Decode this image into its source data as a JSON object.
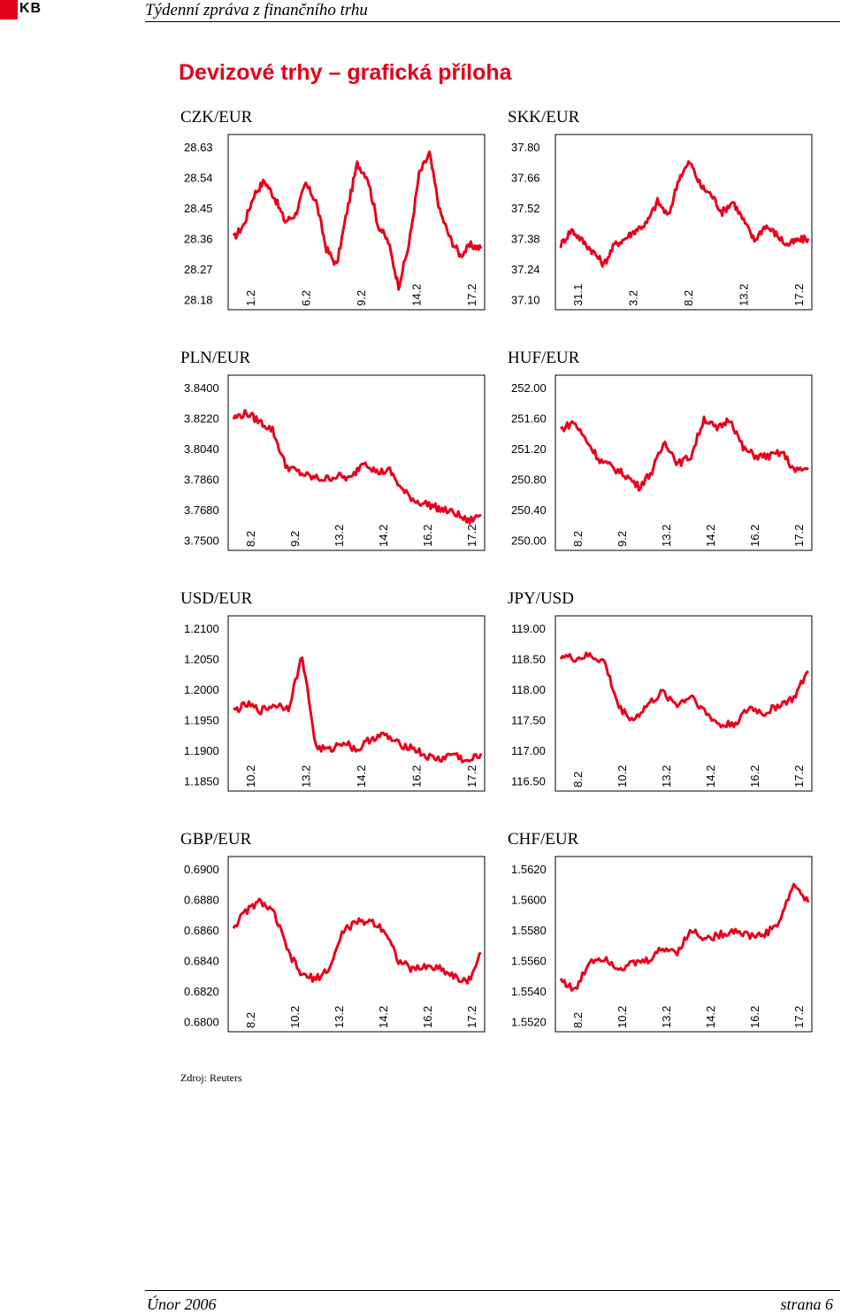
{
  "header": {
    "logo_text": "KB",
    "doc_title": "Týdenní zpráva z finančního trhu"
  },
  "section_title": "Devizové trhy – grafická příloha",
  "source": "Zdroj: Reuters",
  "footer": {
    "left": "Únor 2006",
    "right": "strana 6"
  },
  "colors": {
    "series": "#e8001c",
    "accent": "#e2001a"
  },
  "chart_data": [
    {
      "id": "czk",
      "type": "line",
      "title": "CZK/EUR",
      "yticks": [
        "28.63",
        "28.54",
        "28.45",
        "28.36",
        "28.27",
        "28.18"
      ],
      "ylim": [
        28.18,
        28.63
      ],
      "xticks": [
        "1.2",
        "6.2",
        "9.2",
        "14.2",
        "17.2"
      ],
      "x": [
        "1.2",
        "",
        "",
        "",
        "",
        "",
        "6.2",
        "",
        "",
        "",
        "",
        "9.2",
        "",
        "",
        "",
        "",
        "",
        "",
        "14.2",
        "",
        "",
        "",
        "",
        "17.2",
        ""
      ],
      "values": [
        28.36,
        28.4,
        28.49,
        28.53,
        28.48,
        28.41,
        28.43,
        28.52,
        28.47,
        28.33,
        28.28,
        28.44,
        28.58,
        28.54,
        28.4,
        28.35,
        28.22,
        28.34,
        28.55,
        28.61,
        28.44,
        28.36,
        28.31,
        28.34,
        28.33
      ],
      "grid": false
    },
    {
      "id": "skk",
      "type": "line",
      "title": "SKK/EUR",
      "yticks": [
        "37.80",
        "37.66",
        "37.52",
        "37.38",
        "37.24",
        "37.10"
      ],
      "ylim": [
        37.1,
        37.8
      ],
      "xticks": [
        "31.1",
        "3.2",
        "8.2",
        "13.2",
        "17.2"
      ],
      "x": [
        "31.1",
        "",
        "",
        "",
        "",
        "3.2",
        "",
        "",
        "",
        "",
        "",
        "8.2",
        "",
        "",
        "",
        "",
        "",
        "13.2",
        "",
        "",
        "",
        "",
        "17.2",
        ""
      ],
      "values": [
        37.35,
        37.42,
        37.37,
        37.32,
        37.26,
        37.35,
        37.38,
        37.42,
        37.45,
        37.55,
        37.48,
        37.66,
        37.73,
        37.62,
        37.58,
        37.5,
        37.55,
        37.46,
        37.37,
        37.44,
        37.4,
        37.35,
        37.37,
        37.38
      ],
      "grid": false
    },
    {
      "id": "pln",
      "type": "line",
      "title": "PLN/EUR",
      "yticks": [
        "3.8400",
        "3.8220",
        "3.8040",
        "3.7860",
        "3.7680",
        "3.7500"
      ],
      "ylim": [
        3.75,
        3.84
      ],
      "xticks": [
        "8.2",
        "9.2",
        "13.2",
        "14.2",
        "16.2",
        "17.2"
      ],
      "x": [
        "8.2",
        "",
        "",
        "",
        "9.2",
        "",
        "",
        "13.2",
        "",
        "",
        "",
        "14.2",
        "",
        "",
        "16.2",
        "",
        "",
        "",
        "17.2",
        ""
      ],
      "values": [
        3.822,
        3.825,
        3.82,
        3.815,
        3.794,
        3.79,
        3.787,
        3.786,
        3.788,
        3.786,
        3.797,
        3.79,
        3.791,
        3.779,
        3.773,
        3.771,
        3.768,
        3.766,
        3.761,
        3.765
      ],
      "grid": false
    },
    {
      "id": "huf",
      "type": "line",
      "title": "HUF/EUR",
      "yticks": [
        "252.00",
        "251.60",
        "251.20",
        "250.80",
        "250.40",
        "250.00"
      ],
      "ylim": [
        250.0,
        252.0
      ],
      "xticks": [
        "8.2",
        "9.2",
        "13.2",
        "14.2",
        "16.2",
        "17.2"
      ],
      "x": [
        "8.2",
        "",
        "",
        "",
        "9.2",
        "",
        "",
        "13.2",
        "",
        "",
        "",
        "14.2",
        "",
        "",
        "16.2",
        "",
        "",
        "",
        "17.2",
        ""
      ],
      "values": [
        251.45,
        251.55,
        251.3,
        251.05,
        250.95,
        250.85,
        250.7,
        250.9,
        251.3,
        251.0,
        251.1,
        251.6,
        251.45,
        251.6,
        251.2,
        251.1,
        251.1,
        251.15,
        250.9,
        250.95
      ],
      "grid": false
    },
    {
      "id": "usd",
      "type": "line",
      "title": "USD/EUR",
      "yticks": [
        "1.2100",
        "1.2050",
        "1.2000",
        "1.1950",
        "1.1900",
        "1.1850"
      ],
      "ylim": [
        1.185,
        1.21
      ],
      "xticks": [
        "10.2",
        "13.2",
        "14.2",
        "16.2",
        "17.2"
      ],
      "x": [
        "",
        "",
        "10.2",
        "",
        "",
        "",
        "13.2",
        "",
        "",
        "",
        "14.2",
        "",
        "",
        "16.2",
        "",
        "",
        "",
        "17.2",
        ""
      ],
      "values": [
        1.1965,
        1.1975,
        1.1965,
        1.1975,
        1.197,
        1.2055,
        1.1905,
        1.19,
        1.1915,
        1.19,
        1.192,
        1.1925,
        1.191,
        1.1905,
        1.189,
        1.1885,
        1.1895,
        1.188,
        1.1895
      ],
      "grid": false
    },
    {
      "id": "jpy",
      "type": "line",
      "title": "JPY/USD",
      "yticks": [
        "119.00",
        "118.50",
        "118.00",
        "117.50",
        "117.00",
        "116.50"
      ],
      "ylim": [
        116.5,
        119.0
      ],
      "xticks": [
        "8.2",
        "10.2",
        "13.2",
        "14.2",
        "16.2",
        "17.2"
      ],
      "x": [
        "8.2",
        "",
        "",
        "10.2",
        "",
        "",
        "13.2",
        "",
        "",
        "14.2",
        "",
        "",
        "16.2",
        "",
        "",
        "",
        "17.2",
        ""
      ],
      "values": [
        118.55,
        118.5,
        118.55,
        118.45,
        117.7,
        117.5,
        117.75,
        117.95,
        117.75,
        117.9,
        117.6,
        117.4,
        117.45,
        117.7,
        117.6,
        117.75,
        117.85,
        118.3
      ],
      "grid": false
    },
    {
      "id": "gbp",
      "type": "line",
      "title": "GBP/EUR",
      "yticks": [
        "0.6900",
        "0.6880",
        "0.6860",
        "0.6840",
        "0.6820",
        "0.6800"
      ],
      "ylim": [
        0.68,
        0.69
      ],
      "xticks": [
        "8.2",
        "10.2",
        "13.2",
        "14.2",
        "16.2",
        "17.2"
      ],
      "x": [
        "8.2",
        "",
        "",
        "10.2",
        "",
        "",
        "",
        "13.2",
        "",
        "",
        "14.2",
        "",
        "",
        "16.2",
        "",
        "",
        "",
        "17.2",
        ""
      ],
      "values": [
        0.6862,
        0.6873,
        0.6879,
        0.687,
        0.6845,
        0.683,
        0.6828,
        0.6835,
        0.686,
        0.6865,
        0.6866,
        0.686,
        0.684,
        0.6834,
        0.6836,
        0.6835,
        0.683,
        0.6825,
        0.6845
      ],
      "grid": false
    },
    {
      "id": "chf",
      "type": "line",
      "title": "CHF/EUR",
      "yticks": [
        "1.5620",
        "1.5600",
        "1.5580",
        "1.5560",
        "1.5540",
        "1.5520"
      ],
      "ylim": [
        1.552,
        1.562
      ],
      "xticks": [
        "8.2",
        "10.2",
        "13.2",
        "14.2",
        "16.2",
        "17.2"
      ],
      "x": [
        "8.2",
        "",
        "",
        "10.2",
        "",
        "",
        "13.2",
        "",
        "",
        "14.2",
        "",
        "",
        "16.2",
        "",
        "",
        "",
        "17.2",
        ""
      ],
      "values": [
        1.5548,
        1.554,
        1.556,
        1.5562,
        1.5555,
        1.5558,
        1.556,
        1.5568,
        1.5566,
        1.558,
        1.5574,
        1.5577,
        1.558,
        1.5576,
        1.5577,
        1.5585,
        1.561,
        1.5598
      ],
      "grid": false
    }
  ]
}
